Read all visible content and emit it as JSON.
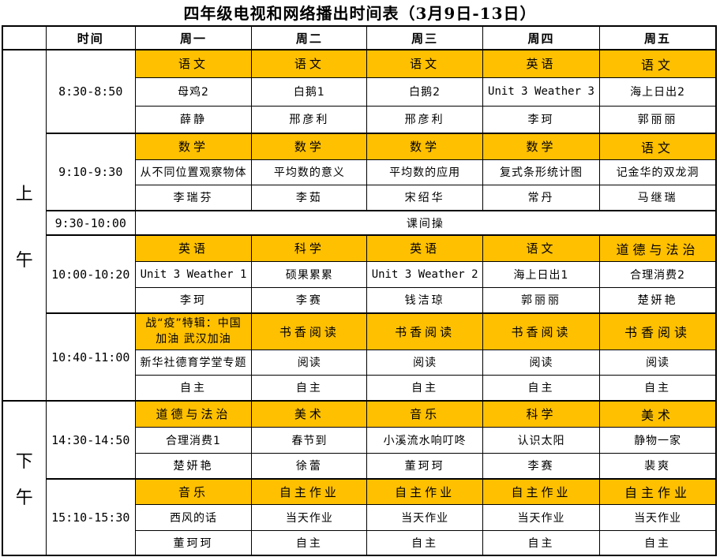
{
  "title": "四年级电视和网络播出时间表（3月9日-13日）",
  "header": {
    "time_label": "时间",
    "days": [
      "周一",
      "周二",
      "周三",
      "周四",
      "周五"
    ]
  },
  "colors": {
    "subject_bg": "#FFC000",
    "border": "#000000",
    "page_bg": "#FFFFFF",
    "text": "#000000"
  },
  "sections": [
    {
      "label": "上午",
      "blocks": [
        {
          "time": "8:30-8:50",
          "subjects": [
            "语文",
            "语文",
            "语文",
            "英语",
            "语文"
          ],
          "contents": [
            "母鸡2",
            "白鹅1",
            "白鹅2",
            "Unit 3 Weather 3",
            "海上日出2"
          ],
          "teachers": [
            "薛静",
            "邢彦利",
            "邢彦利",
            "李珂",
            "郭丽丽"
          ]
        },
        {
          "time": "9:10-9:30",
          "subjects": [
            "数学",
            "数学",
            "数学",
            "数学",
            "语文"
          ],
          "contents": [
            "从不同位置观察物体",
            "平均数的意义",
            "平均数的应用",
            "复式条形统计图",
            "记金华的双龙洞"
          ],
          "teachers": [
            "李瑞芬",
            "李茹",
            "宋绍华",
            "常丹",
            "马继瑞"
          ]
        },
        {
          "time": "9:30-10:00",
          "merged": "课间操"
        },
        {
          "time": "10:00-10:20",
          "subjects": [
            "英语",
            "科学",
            "英语",
            "语文",
            "道德与法治"
          ],
          "contents": [
            "Unit 3 Weather 1",
            "硕果累累",
            "Unit 3 Weather 2",
            "海上日出1",
            "合理消费2"
          ],
          "teachers": [
            "李珂",
            "李赛",
            "钱洁琼",
            "郭丽丽",
            "楚妍艳"
          ]
        },
        {
          "time": "10:40-11:00",
          "subjects": [
            "战“疫”特辑：中国加油 武汉加油",
            "书香阅读",
            "书香阅读",
            "书香阅读",
            "书香阅读"
          ],
          "contents": [
            "新华社德育学堂专题",
            "阅读",
            "阅读",
            "阅读",
            "阅读"
          ],
          "teachers": [
            "自主",
            "自主",
            "自主",
            "自主",
            "自主"
          ]
        }
      ]
    },
    {
      "label": "下午",
      "blocks": [
        {
          "time": "14:30-14:50",
          "subjects": [
            "道德与法治",
            "美术",
            "音乐",
            "科学",
            "美术"
          ],
          "contents": [
            "合理消费1",
            "春节到",
            "小溪流水响叮咚",
            "认识太阳",
            "静物一家"
          ],
          "teachers": [
            "楚妍艳",
            "徐蕾",
            "董珂珂",
            "李赛",
            "裴爽"
          ]
        },
        {
          "time": "15:10-15:30",
          "subjects": [
            "音乐",
            "自主作业",
            "自主作业",
            "自主作业",
            "自主作业"
          ],
          "contents": [
            "西风的话",
            "当天作业",
            "当天作业",
            "当天作业",
            "当天作业"
          ],
          "teachers": [
            "董珂珂",
            "自主",
            "自主",
            "自主",
            "自主"
          ]
        }
      ]
    }
  ]
}
